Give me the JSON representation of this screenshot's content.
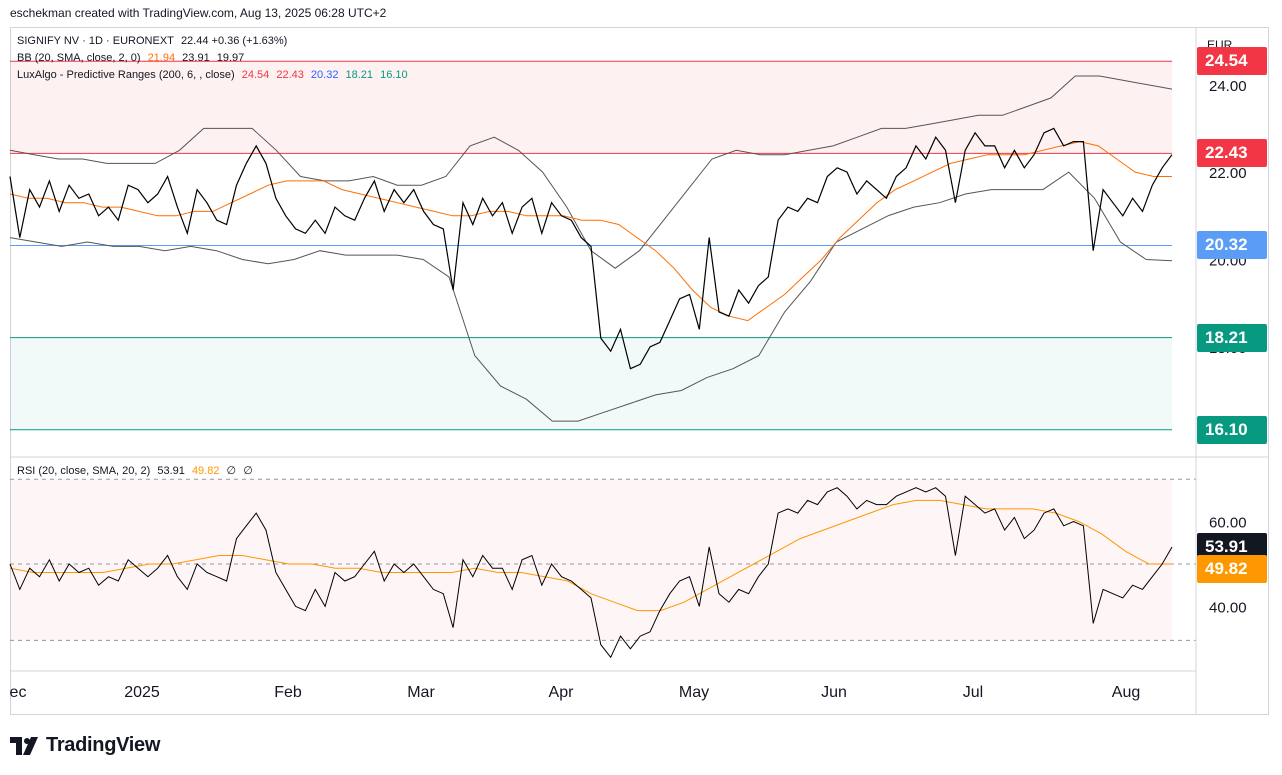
{
  "header": {
    "text": "eschekman created with TradingView.com, Aug 13, 2025 06:28 UTC+2"
  },
  "currency": "EUR",
  "legend": {
    "main": "SIGNIFY NV · 1D · EURONEXT",
    "main_values": "22.44  +0.36 (+1.63%)",
    "bb_label": "BB (20, SMA, close, 2, 0)",
    "bb_basis": "21.94",
    "bb_upper": "23.91",
    "bb_lower": "19.97",
    "lux_label": "LuxAlgo - Predictive Ranges (200, 6, , close)",
    "lux_r2": "24.54",
    "lux_r1": "22.43",
    "lux_avg": "20.32",
    "lux_s1": "18.21",
    "lux_s2": "16.10",
    "rsi_label": "RSI (20, close, SMA, 20, 2)",
    "rsi_value": "53.91",
    "rsi_ma": "49.82",
    "rsi_extra1": "∅",
    "rsi_extra2": "∅"
  },
  "price_badges": {
    "r2": "24.54",
    "r1": "22.43",
    "avg": "20.32",
    "s1": "18.21",
    "s2": "16.10"
  },
  "rsi_badges": {
    "value": "53.91",
    "ma": "49.82"
  },
  "colors": {
    "resistance": "#f23645",
    "average": "#2962ff",
    "support": "#089981",
    "price": "#000000",
    "bb_basis": "#ff6d00",
    "bb_band": "#555555",
    "rsi_line": "#000000",
    "rsi_ma": "#ff9800",
    "rsi_value_badge": "#131722"
  },
  "brand": "TradingView",
  "chart_data": [
    {
      "type": "line",
      "title": "SIGNIFY NV · 1D · EURONEXT",
      "ylim": [
        15.5,
        25.3
      ],
      "y_ticks": [
        "24.00",
        "22.00",
        "20.00",
        "18.00"
      ],
      "time_labels": [
        "ec",
        "2025",
        "Feb",
        "Mar",
        "Apr",
        "May",
        "Jun",
        "Jul",
        "Aug"
      ],
      "levels": {
        "r2": 24.54,
        "r1": 22.43,
        "avg": 20.32,
        "s1": 18.21,
        "s2": 16.1
      },
      "series": [
        {
          "name": "SIGNIFY NV",
          "values": [
            21.9,
            20.5,
            21.6,
            21.2,
            21.8,
            21.1,
            21.7,
            21.4,
            21.5,
            21.0,
            21.2,
            20.9,
            21.7,
            21.6,
            21.3,
            21.5,
            21.9,
            21.2,
            20.6,
            21.6,
            21.3,
            20.9,
            20.8,
            21.7,
            22.2,
            22.6,
            22.2,
            21.4,
            21.0,
            20.7,
            20.6,
            20.9,
            20.6,
            21.2,
            21.0,
            20.9,
            21.4,
            21.8,
            21.1,
            21.6,
            21.3,
            21.6,
            21.1,
            20.8,
            20.7,
            19.3,
            21.3,
            20.8,
            21.4,
            21.0,
            21.3,
            20.6,
            21.2,
            21.4,
            20.6,
            21.3,
            21.0,
            20.9,
            20.5,
            20.3,
            18.2,
            17.9,
            18.4,
            17.5,
            17.6,
            18.0,
            18.1,
            18.6,
            19.1,
            19.2,
            18.4,
            20.5,
            18.8,
            18.7,
            19.3,
            19.0,
            19.4,
            19.6,
            20.9,
            21.2,
            21.1,
            21.4,
            21.3,
            21.9,
            22.1,
            22.0,
            21.5,
            21.8,
            21.6,
            21.4,
            21.9,
            22.1,
            22.6,
            22.3,
            22.8,
            22.5,
            21.3,
            22.5,
            22.9,
            22.6,
            22.6,
            22.1,
            22.5,
            22.1,
            22.4,
            22.9,
            23.0,
            22.6,
            22.7,
            22.7,
            20.2,
            21.6,
            21.3,
            21.0,
            21.4,
            21.1,
            21.7,
            22.1,
            22.4
          ]
        },
        {
          "name": "BB basis",
          "values": [
            21.5,
            21.4,
            21.4,
            21.3,
            21.3,
            21.2,
            21.2,
            21.1,
            21.0,
            21.0,
            21.1,
            21.1,
            21.3,
            21.5,
            21.7,
            21.8,
            21.8,
            21.8,
            21.6,
            21.5,
            21.4,
            21.3,
            21.2,
            21.1,
            21.0,
            21.0,
            21.1,
            21.1,
            21.0,
            21.0,
            21.0,
            20.9,
            20.9,
            20.8,
            20.5,
            20.2,
            19.8,
            19.3,
            18.9,
            18.7,
            18.6,
            18.9,
            19.2,
            19.6,
            20.0,
            20.5,
            20.9,
            21.3,
            21.6,
            21.8,
            22.0,
            22.2,
            22.3,
            22.4,
            22.4,
            22.4,
            22.5,
            22.6,
            22.7,
            22.6,
            22.3,
            22.0,
            21.9,
            21.9
          ]
        },
        {
          "name": "BB upper",
          "values": [
            22.5,
            22.4,
            22.3,
            22.3,
            22.2,
            22.2,
            22.2,
            22.5,
            23.0,
            23.0,
            23.0,
            22.5,
            21.9,
            21.8,
            21.8,
            21.9,
            21.7,
            21.7,
            21.9,
            22.6,
            22.8,
            22.5,
            22.0,
            21.2,
            20.2,
            19.8,
            20.2,
            20.9,
            21.6,
            22.3,
            22.5,
            22.4,
            22.4,
            22.5,
            22.6,
            22.8,
            23.0,
            23.0,
            23.1,
            23.2,
            23.3,
            23.3,
            23.5,
            23.7,
            24.2,
            24.2,
            24.1,
            24.0,
            23.9
          ]
        },
        {
          "name": "BB lower",
          "values": [
            20.5,
            20.4,
            20.3,
            20.4,
            20.3,
            20.3,
            20.2,
            20.3,
            20.2,
            20.0,
            19.9,
            20.0,
            20.2,
            20.1,
            20.1,
            20.1,
            20.0,
            19.6,
            17.8,
            17.1,
            16.8,
            16.3,
            16.3,
            16.5,
            16.7,
            16.9,
            17.0,
            17.3,
            17.5,
            17.8,
            18.8,
            19.5,
            20.4,
            20.7,
            21.0,
            21.2,
            21.3,
            21.5,
            21.6,
            21.6,
            21.6,
            22.0,
            21.4,
            20.4,
            20.0,
            19.97
          ]
        }
      ]
    },
    {
      "type": "line",
      "title": "RSI (20, close, SMA, 20, 2)",
      "ylim": [
        25,
        75
      ],
      "y_ticks": [
        "60.00",
        "40.00"
      ],
      "bands": [
        32,
        70
      ],
      "mid": 50,
      "series": [
        {
          "name": "RSI",
          "values": [
            50,
            44,
            49,
            47,
            51,
            46,
            50,
            48,
            49,
            45,
            47,
            46,
            51,
            49,
            47,
            49,
            52,
            47,
            44,
            50,
            48,
            47,
            46,
            56,
            59,
            62,
            58,
            48,
            44,
            40,
            39,
            44,
            40,
            48,
            46,
            47,
            50,
            53,
            46,
            50,
            48,
            50,
            47,
            44,
            43,
            35,
            51,
            47,
            52,
            49,
            49,
            44,
            51,
            52,
            45,
            50,
            47,
            46,
            44,
            42,
            31,
            28,
            33,
            30,
            33,
            34,
            39,
            43,
            46,
            47,
            40,
            54,
            43,
            41,
            44,
            43,
            47,
            50,
            62,
            63,
            62,
            65,
            64,
            67,
            68,
            66,
            63,
            65,
            64,
            64,
            66,
            67,
            68,
            67,
            68,
            66,
            52,
            66,
            64,
            62,
            63,
            58,
            61,
            56,
            58,
            62,
            63,
            59,
            60,
            59,
            36,
            44,
            43,
            42,
            45,
            44,
            47,
            50,
            54
          ]
        },
        {
          "name": "RSI MA",
          "values": [
            49,
            48,
            48,
            48,
            48,
            49,
            50,
            50,
            51,
            52,
            52,
            51,
            50,
            50,
            49,
            49,
            48,
            48,
            48,
            48,
            49,
            48,
            48,
            47,
            46,
            43,
            41,
            39,
            39,
            41,
            44,
            47,
            50,
            53,
            56,
            58,
            60,
            62,
            64,
            65,
            65,
            64,
            63,
            63,
            63,
            62,
            60,
            57,
            53,
            50,
            50
          ]
        }
      ]
    }
  ]
}
